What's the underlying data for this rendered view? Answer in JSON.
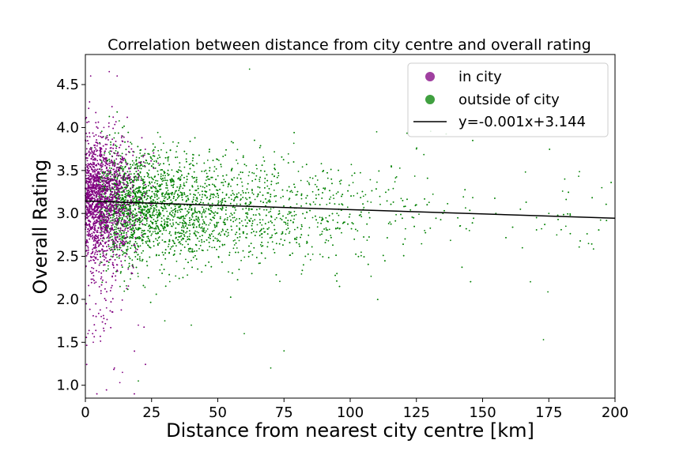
{
  "chart_data": {
    "type": "scatter",
    "title": "Correlation between distance from city centre and overall rating",
    "xlabel": "Distance from nearest city centre [km]",
    "ylabel": "Overall Rating",
    "xlim": [
      0,
      200
    ],
    "ylim": [
      0.85,
      4.85
    ],
    "xticks": [
      0,
      25,
      50,
      75,
      100,
      125,
      150,
      175,
      200
    ],
    "yticks": [
      1.0,
      1.5,
      2.0,
      2.5,
      3.0,
      3.5,
      4.0,
      4.5
    ],
    "xtick_labels": [
      "0",
      "25",
      "50",
      "75",
      "100",
      "125",
      "150",
      "175",
      "200"
    ],
    "ytick_labels": [
      "1.0",
      "1.5",
      "2.0",
      "2.5",
      "3.0",
      "3.5",
      "4.0",
      "4.5"
    ],
    "legend_position": "top-right",
    "series": [
      {
        "name": "in city",
        "color": "#800080",
        "distance_range": [
          0,
          30
        ],
        "rating_mean": 3.2,
        "rating_spread": 0.35,
        "points": [
          [
            1,
            3.3
          ],
          [
            2,
            3.1
          ],
          [
            3,
            3.5
          ],
          [
            4,
            2.9
          ],
          [
            5,
            3.4
          ],
          [
            6,
            3.2
          ],
          [
            8,
            3.6
          ],
          [
            10,
            3.3
          ],
          [
            12,
            3.0
          ],
          [
            15,
            3.4
          ],
          [
            18,
            3.2
          ],
          [
            20,
            3.5
          ],
          [
            2,
            2.5
          ],
          [
            4,
            2.2
          ],
          [
            6,
            1.8
          ],
          [
            3,
            1.5
          ],
          [
            8,
            1.9
          ],
          [
            1,
            1.6
          ],
          [
            5,
            3.9
          ],
          [
            7,
            4.0
          ],
          [
            2,
            4.6
          ],
          [
            9,
            4.65
          ],
          [
            12,
            4.6
          ],
          [
            11,
            1.2
          ],
          [
            14,
            1.15
          ],
          [
            13,
            1.03
          ],
          [
            20,
            1.7
          ],
          [
            22,
            3.6
          ]
        ]
      },
      {
        "name": "outside of city",
        "color": "#008000",
        "distance_range": [
          0,
          200
        ],
        "rating_mean": 3.1,
        "rating_spread": 0.33,
        "points": [
          [
            25,
            3.2
          ],
          [
            35,
            3.1
          ],
          [
            45,
            3.3
          ],
          [
            55,
            3.0
          ],
          [
            65,
            3.2
          ],
          [
            75,
            2.9
          ],
          [
            85,
            3.1
          ],
          [
            95,
            3.0
          ],
          [
            105,
            3.2
          ],
          [
            115,
            2.9
          ],
          [
            125,
            3.1
          ],
          [
            135,
            3.0
          ],
          [
            145,
            2.8
          ],
          [
            155,
            3.0
          ],
          [
            165,
            2.6
          ],
          [
            175,
            3.0
          ],
          [
            181,
            3.4
          ],
          [
            190,
            2.65
          ],
          [
            195,
            3.3
          ],
          [
            62,
            4.68
          ],
          [
            110,
            3.95
          ],
          [
            125,
            3.75
          ],
          [
            30,
            1.75
          ],
          [
            40,
            1.7
          ],
          [
            60,
            1.6
          ],
          [
            70,
            1.2
          ],
          [
            75,
            1.4
          ],
          [
            20,
            1.05
          ],
          [
            173,
            1.53
          ],
          [
            178,
            2.75
          ]
        ]
      }
    ],
    "regression": {
      "label": "y=-0.001x+3.144",
      "slope": -0.001,
      "intercept": 3.144,
      "color": "#000000"
    }
  }
}
